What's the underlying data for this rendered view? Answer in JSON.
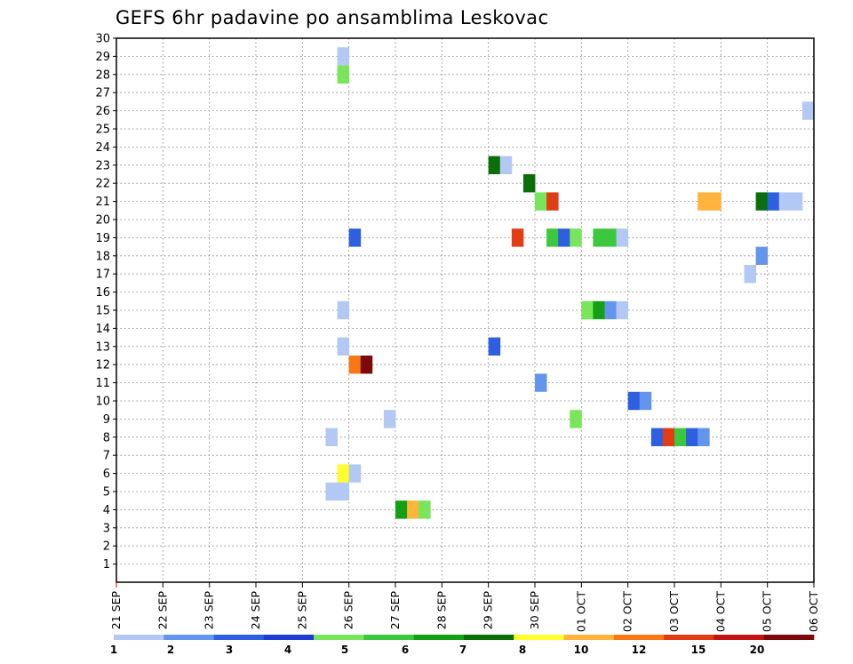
{
  "chart_data": {
    "type": "heatmap",
    "title": "GEFS 6hr padavine po ansamblima Leskovac",
    "xlabel": "",
    "ylabel": "",
    "x_ticks": [
      "21 SEP",
      "22 SEP",
      "23 SEP",
      "24 SEP",
      "25 SEP",
      "26 SEP",
      "27 SEP",
      "28 SEP",
      "29 SEP",
      "30 SEP",
      "01 OCT",
      "02 OCT",
      "03 OCT",
      "04 OCT",
      "05 OCT",
      "06 OCT"
    ],
    "xlim": [
      "21 SEP 00Z",
      "06 OCT 00Z"
    ],
    "y_ticks": [
      1,
      2,
      3,
      4,
      5,
      6,
      7,
      8,
      9,
      10,
      11,
      12,
      13,
      14,
      15,
      16,
      17,
      18,
      19,
      20,
      21,
      22,
      23,
      24,
      25,
      26,
      27,
      28,
      29,
      30
    ],
    "ylim": [
      0,
      30
    ],
    "grid": true,
    "colorbar": {
      "position": "bottom",
      "ticks": [
        "1",
        "2",
        "3",
        "4",
        "5",
        "6",
        "7",
        "8",
        "10",
        "12",
        "15",
        "20"
      ],
      "colors": [
        "#b4c8f5",
        "#6495ed",
        "#2d5fe0",
        "#1e3cd2",
        "#78e55a",
        "#3cc83c",
        "#14a014",
        "#0a6e0a",
        "#ffff2d",
        "#ffb43c",
        "#fa7814",
        "#e13c14",
        "#c31414",
        "#7d0a0a"
      ]
    },
    "cells": [
      {
        "member": 29,
        "time": "25 SEP 18Z",
        "bin": 1
      },
      {
        "member": 28,
        "time": "25 SEP 18Z",
        "bin": 5
      },
      {
        "member": 26,
        "time": "05 OCT 18Z",
        "bin": 1
      },
      {
        "member": 23,
        "time": "29 SEP 00Z",
        "bin": 8
      },
      {
        "member": 23,
        "time": "29 SEP 06Z",
        "bin": 1
      },
      {
        "member": 22,
        "time": "29 SEP 18Z",
        "bin": 8
      },
      {
        "member": 21,
        "time": "30 SEP 00Z",
        "bin": 5
      },
      {
        "member": 21,
        "time": "30 SEP 06Z",
        "bin": 12
      },
      {
        "member": 21,
        "time": "03 OCT 12Z",
        "bin": 10
      },
      {
        "member": 21,
        "time": "03 OCT 18Z",
        "bin": 10
      },
      {
        "member": 21,
        "time": "04 OCT 18Z",
        "bin": 8
      },
      {
        "member": 21,
        "time": "05 OCT 00Z",
        "bin": 3
      },
      {
        "member": 21,
        "time": "05 OCT 06Z",
        "bin": 1
      },
      {
        "member": 21,
        "time": "05 OCT 12Z",
        "bin": 1
      },
      {
        "member": 19,
        "time": "26 SEP 00Z",
        "bin": 3
      },
      {
        "member": 19,
        "time": "29 SEP 12Z",
        "bin": 12
      },
      {
        "member": 19,
        "time": "30 SEP 06Z",
        "bin": 6
      },
      {
        "member": 19,
        "time": "30 SEP 12Z",
        "bin": 3
      },
      {
        "member": 19,
        "time": "30 SEP 18Z",
        "bin": 5
      },
      {
        "member": 19,
        "time": "01 OCT 06Z",
        "bin": 6
      },
      {
        "member": 19,
        "time": "01 OCT 12Z",
        "bin": 6
      },
      {
        "member": 19,
        "time": "01 OCT 18Z",
        "bin": 1
      },
      {
        "member": 18,
        "time": "04 OCT 18Z",
        "bin": 2
      },
      {
        "member": 17,
        "time": "04 OCT 12Z",
        "bin": 1
      },
      {
        "member": 15,
        "time": "25 SEP 18Z",
        "bin": 1
      },
      {
        "member": 15,
        "time": "01 OCT 00Z",
        "bin": 5
      },
      {
        "member": 15,
        "time": "01 OCT 06Z",
        "bin": 7
      },
      {
        "member": 15,
        "time": "01 OCT 12Z",
        "bin": 2
      },
      {
        "member": 15,
        "time": "01 OCT 18Z",
        "bin": 1
      },
      {
        "member": 13,
        "time": "25 SEP 18Z",
        "bin": 1
      },
      {
        "member": 13,
        "time": "29 SEP 00Z",
        "bin": 3
      },
      {
        "member": 12,
        "time": "26 SEP 00Z",
        "bin": 11
      },
      {
        "member": 12,
        "time": "26 SEP 06Z",
        "bin": 14
      },
      {
        "member": 11,
        "time": "30 SEP 00Z",
        "bin": 2
      },
      {
        "member": 10,
        "time": "02 OCT 00Z",
        "bin": 3
      },
      {
        "member": 10,
        "time": "02 OCT 06Z",
        "bin": 2
      },
      {
        "member": 9,
        "time": "26 SEP 18Z",
        "bin": 1
      },
      {
        "member": 9,
        "time": "30 SEP 18Z",
        "bin": 5
      },
      {
        "member": 8,
        "time": "25 SEP 12Z",
        "bin": 1
      },
      {
        "member": 8,
        "time": "02 OCT 12Z",
        "bin": 3
      },
      {
        "member": 8,
        "time": "02 OCT 18Z",
        "bin": 12
      },
      {
        "member": 8,
        "time": "03 OCT 00Z",
        "bin": 6
      },
      {
        "member": 8,
        "time": "03 OCT 06Z",
        "bin": 3
      },
      {
        "member": 8,
        "time": "03 OCT 12Z",
        "bin": 2
      },
      {
        "member": 6,
        "time": "25 SEP 18Z",
        "bin": 9
      },
      {
        "member": 6,
        "time": "26 SEP 00Z",
        "bin": 1
      },
      {
        "member": 5,
        "time": "25 SEP 12Z",
        "bin": 1
      },
      {
        "member": 5,
        "time": "25 SEP 18Z",
        "bin": 1
      },
      {
        "member": 4,
        "time": "27 SEP 00Z",
        "bin": 7
      },
      {
        "member": 4,
        "time": "27 SEP 06Z",
        "bin": 10
      },
      {
        "member": 4,
        "time": "27 SEP 12Z",
        "bin": 5
      }
    ]
  }
}
